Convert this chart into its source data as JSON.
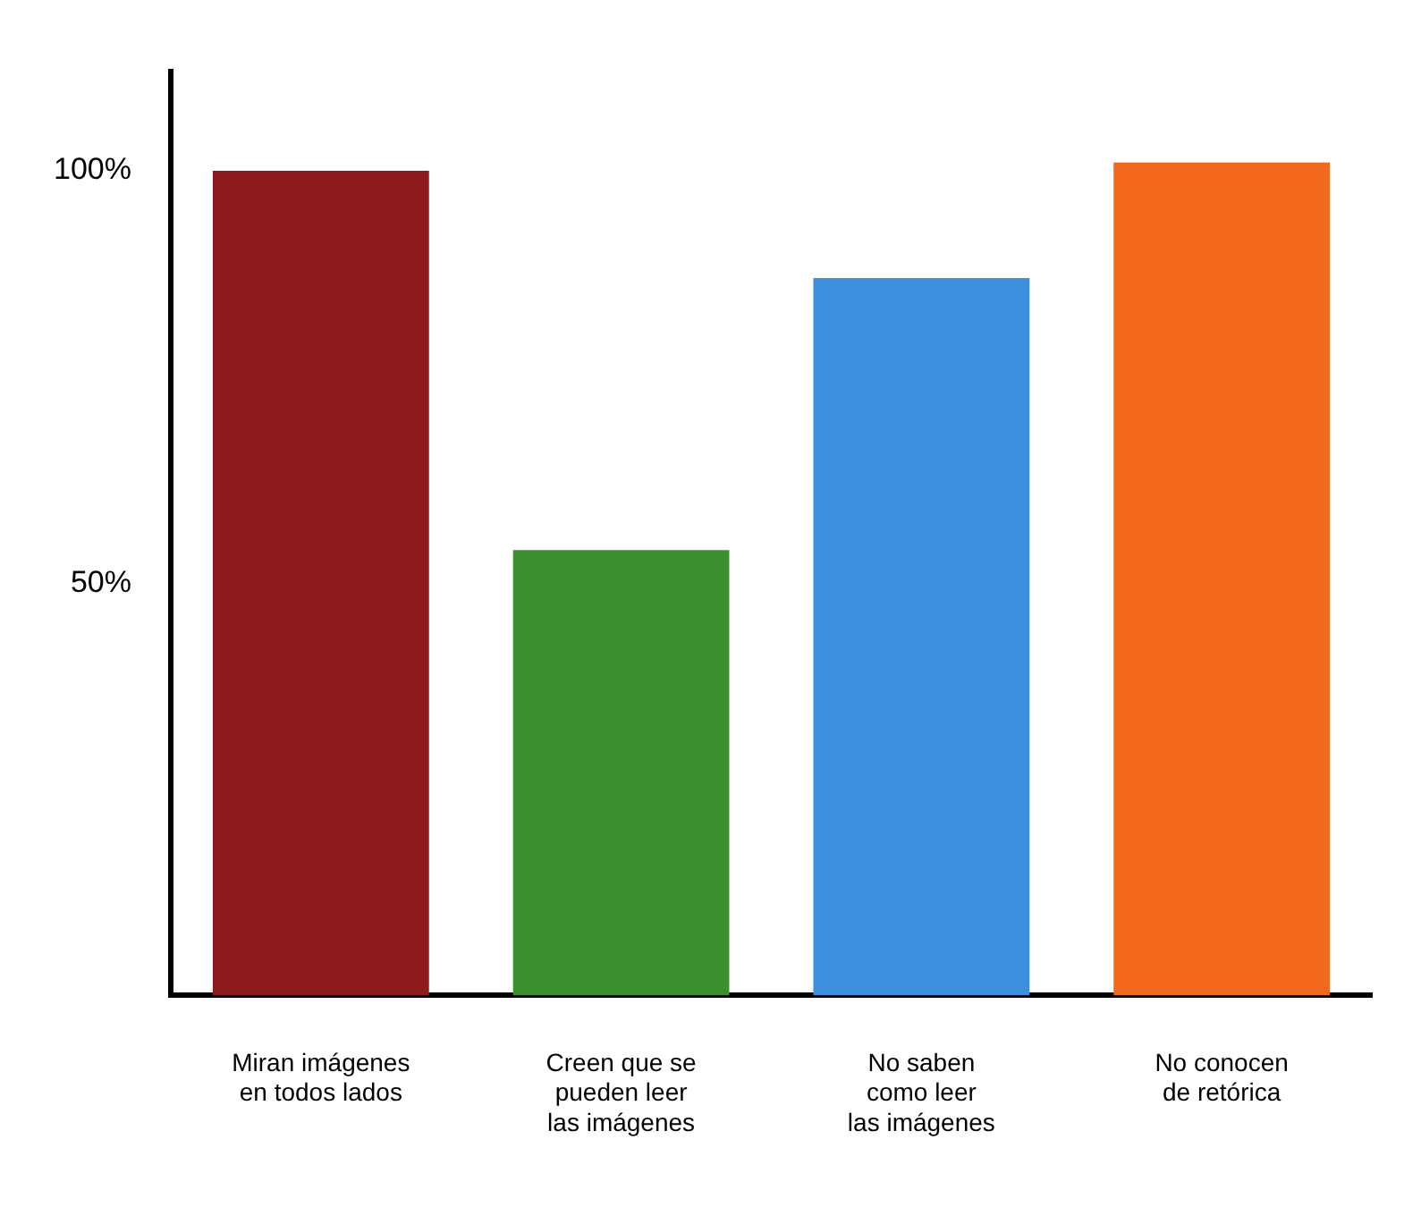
{
  "chart_data": {
    "type": "bar",
    "categories": [
      "Miran imágenes\nen todos lados",
      "Creen que se\npueden leer\nlas imágenes",
      "No saben\ncomo leer\nlas imágenes",
      "No conocen\nde retórica"
    ],
    "values": [
      100,
      54,
      87,
      101
    ],
    "colors": [
      "#8e1a1e",
      "#3b8f2e",
      "#3f8fdf",
      "#f2691c"
    ],
    "ylim": [
      0,
      112
    ],
    "yticks": [
      {
        "value": 50,
        "label": "50%"
      },
      {
        "value": 100,
        "label": "100%"
      }
    ],
    "grid": false,
    "legend": false
  }
}
